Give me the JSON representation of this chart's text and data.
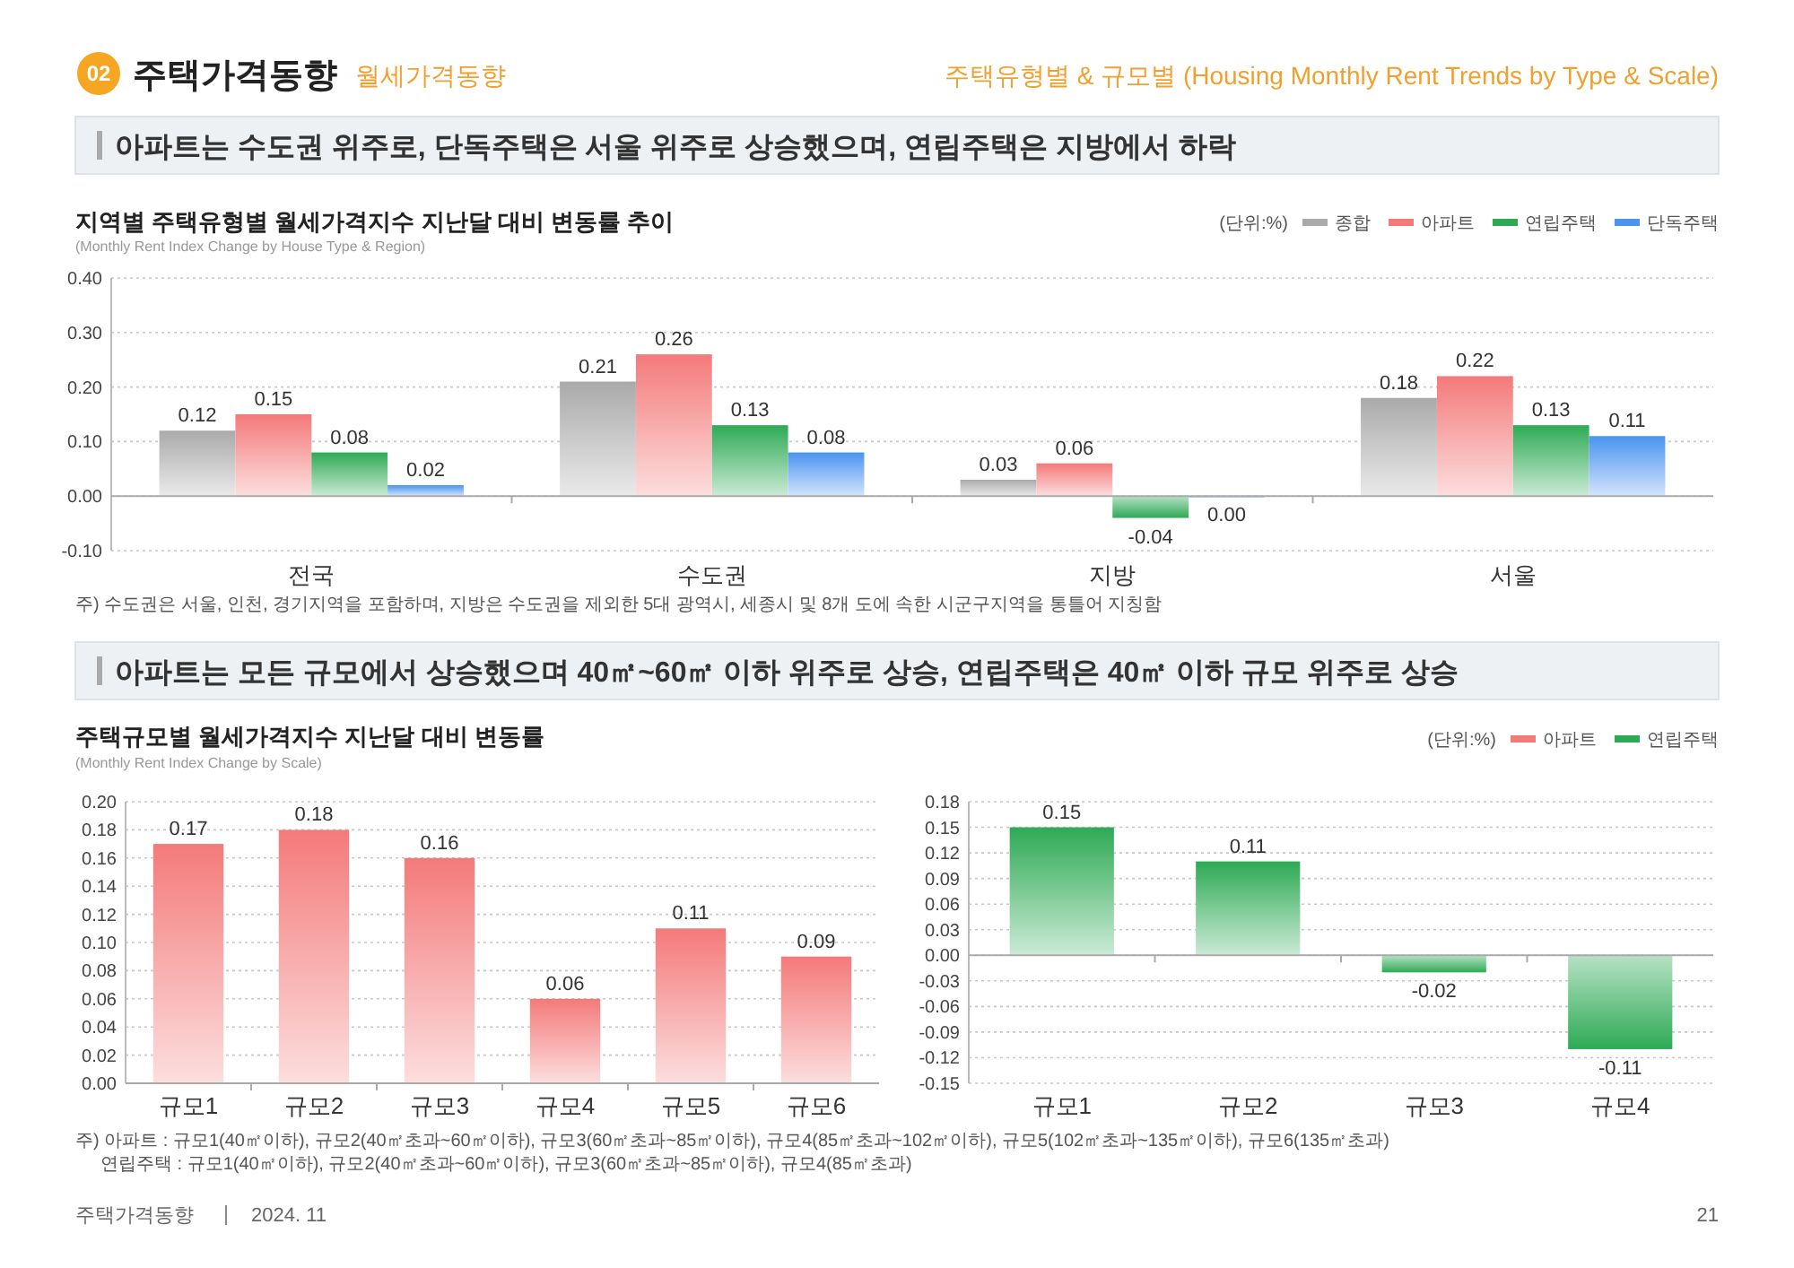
{
  "chart_data": [
    {
      "type": "bar",
      "title": "지역별 주택유형별 월세가격지수 지난달 대비 변동률 추이",
      "subtitle": "(Monthly Rent Index Change by House Type & Region)",
      "categories": [
        "전국",
        "수도권",
        "지방",
        "서울"
      ],
      "series": [
        {
          "name": "종합",
          "color": "#aaaaaa",
          "values": [
            0.12,
            0.21,
            0.03,
            0.18
          ],
          "value_labels": [
            "0.12",
            "0.21",
            "0.03",
            "0.18"
          ]
        },
        {
          "name": "아파트",
          "color": "#f47a7a",
          "values": [
            0.15,
            0.26,
            0.06,
            0.22
          ],
          "value_labels": [
            "0.15",
            "0.26",
            "0.06",
            "0.22"
          ]
        },
        {
          "name": "연립주택",
          "color": "#2eaa55",
          "values": [
            0.08,
            0.13,
            -0.04,
            0.13
          ],
          "value_labels": [
            "0.08",
            "0.13",
            "-0.04",
            "0.13"
          ]
        },
        {
          "name": "단독주택",
          "color": "#4a94f0",
          "values": [
            0.02,
            0.08,
            0,
            0.11
          ],
          "value_labels": [
            "0.02",
            "0.08",
            "0.00",
            "0.11"
          ]
        }
      ],
      "ylim": [
        -0.1,
        0.4
      ],
      "yticks": [
        {
          "value": -0.1,
          "label": "-0.10"
        },
        {
          "value": 0,
          "label": "0.00"
        },
        {
          "value": 0.1,
          "label": "0.10"
        },
        {
          "value": 0.2,
          "label": "0.20"
        },
        {
          "value": 0.3,
          "label": "0.30"
        },
        {
          "value": 0.4,
          "label": "0.40"
        }
      ],
      "grid": "y",
      "legend": "top right",
      "annotations": [
        "02",
        "주택가격동향",
        "월세가격동향",
        "주택유형별 & 규모별 (Housing Monthly Rent Trends by Type & Scale)",
        "아파트는 수도권 위주로, 단독주택은 서울 위주로 상승했으며, 연립주택은 지방에서 하락",
        "(단위:%)",
        "주) 수도권은 서울, 인천, 경기지역을 포함하며, 지방은 수도권을 제외한 5대 광역시, 세종시 및 8개 도에 속한 시군구지역을 통틀어 지칭함"
      ]
    },
    {
      "type": "bar",
      "title": "주택규모별 월세가격지수 지난달 대비 변동률",
      "subtitle": "(Monthly Rent Index Change by Scale)",
      "categories": [
        "규모1",
        "규모2",
        "규모3",
        "규모4",
        "규모5",
        "규모6"
      ],
      "series": [
        {
          "name": "아파트",
          "color": "#f47a7a",
          "values": [
            0.17,
            0.18,
            0.16,
            0.06,
            0.11,
            0.09
          ],
          "value_labels": [
            "0.17",
            "0.18",
            "0.16",
            "0.06",
            "0.11",
            "0.09"
          ]
        }
      ],
      "ylim": [
        0,
        0.2
      ],
      "yticks": [
        {
          "value": 0,
          "label": "0.00"
        },
        {
          "value": 0.02,
          "label": "0.02"
        },
        {
          "value": 0.04,
          "label": "0.04"
        },
        {
          "value": 0.06,
          "label": "0.06"
        },
        {
          "value": 0.08,
          "label": "0.08"
        },
        {
          "value": 0.1,
          "label": "0.10"
        },
        {
          "value": 0.12,
          "label": "0.12"
        },
        {
          "value": 0.14,
          "label": "0.14"
        },
        {
          "value": 0.16,
          "label": "0.16"
        },
        {
          "value": 0.18,
          "label": "0.18"
        },
        {
          "value": 0.2,
          "label": "0.20"
        }
      ],
      "grid": "y",
      "legend": "top right",
      "annotations": [
        "아파트는 모든 규모에서 상승했으며 40㎡~60㎡ 이하 위주로 상승, 연립주택은 40㎡ 이하 규모 위주로 상승",
        "(단위:%)",
        "주) 아파트 : 규모1(40㎡이하), 규모2(40㎡초과~60㎡이하), 규모3(60㎡초과~85㎡이하), 규모4(85㎡초과~102㎡이하), 규모5(102㎡초과~135㎡이하), 규모6(135㎡초과)",
        "연립주택 : 규모1(40㎡이하), 규모2(40㎡초과~60㎡이하), 규모3(60㎡초과~85㎡이하), 규모4(85㎡초과)",
        "주택가격동향",
        "2024. 11",
        "21"
      ]
    },
    {
      "type": "bar",
      "categories": [
        "규모1",
        "규모2",
        "규모3",
        "규모4"
      ],
      "series": [
        {
          "name": "연립주택",
          "color": "#2eaa55",
          "values": [
            0.15,
            0.11,
            -0.02,
            -0.11
          ],
          "value_labels": [
            "0.15",
            "0.11",
            "-0.02",
            "-0.11"
          ]
        }
      ],
      "ylim": [
        -0.15,
        0.18
      ],
      "yticks": [
        {
          "value": -0.15,
          "label": "-0.15"
        },
        {
          "value": -0.12,
          "label": "-0.12"
        },
        {
          "value": -0.09,
          "label": "-0.09"
        },
        {
          "value": -0.06,
          "label": "-0.06"
        },
        {
          "value": -0.03,
          "label": "-0.03"
        },
        {
          "value": 0,
          "label": "0.00"
        },
        {
          "value": 0.03,
          "label": "0.03"
        },
        {
          "value": 0.06,
          "label": "0.06"
        },
        {
          "value": 0.09,
          "label": "0.09"
        },
        {
          "value": 0.12,
          "label": "0.12"
        },
        {
          "value": 0.15,
          "label": "0.15"
        },
        {
          "value": 0.18,
          "label": "0.18"
        }
      ],
      "grid": "y",
      "legend": "top right"
    }
  ]
}
